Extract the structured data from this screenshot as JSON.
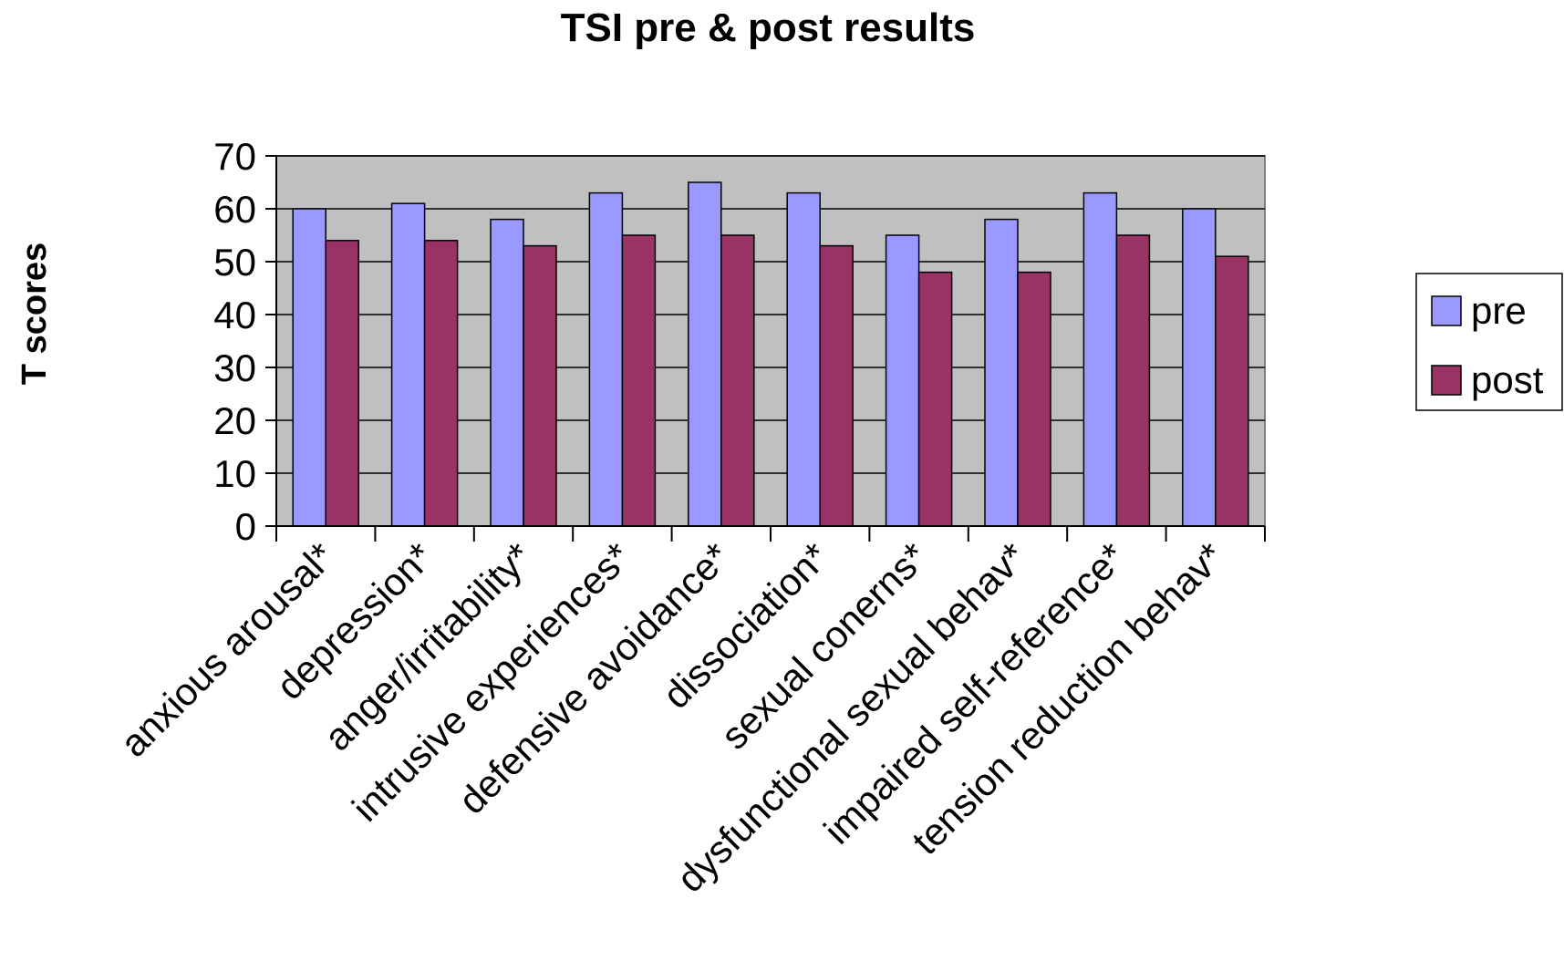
{
  "chart_data": {
    "type": "bar",
    "title": "TSI pre & post results",
    "xlabel": "",
    "ylabel": "T scores",
    "ylim": [
      0,
      70
    ],
    "yticks": [
      0,
      10,
      20,
      30,
      40,
      50,
      60,
      70
    ],
    "grid": true,
    "legend_position": "right",
    "colors": {
      "pre": "#9999ff",
      "post": "#993366",
      "plot_background": "#c0c0c0",
      "gridline": "#000000"
    },
    "categories": [
      "anxious arousal*",
      "depression*",
      "anger/irritability*",
      "intrusive experiences*",
      "defensive avoidance*",
      "dissociation*",
      "sexual conerns*",
      "dysfunctional sexual behav*",
      "impaired self-reference*",
      "tension reduction behav*"
    ],
    "series": [
      {
        "name": "pre",
        "values": [
          60,
          61,
          58,
          63,
          65,
          63,
          55,
          58,
          63,
          60
        ]
      },
      {
        "name": "post",
        "values": [
          54,
          54,
          53,
          55,
          55,
          53,
          48,
          48,
          55,
          51
        ]
      }
    ]
  }
}
